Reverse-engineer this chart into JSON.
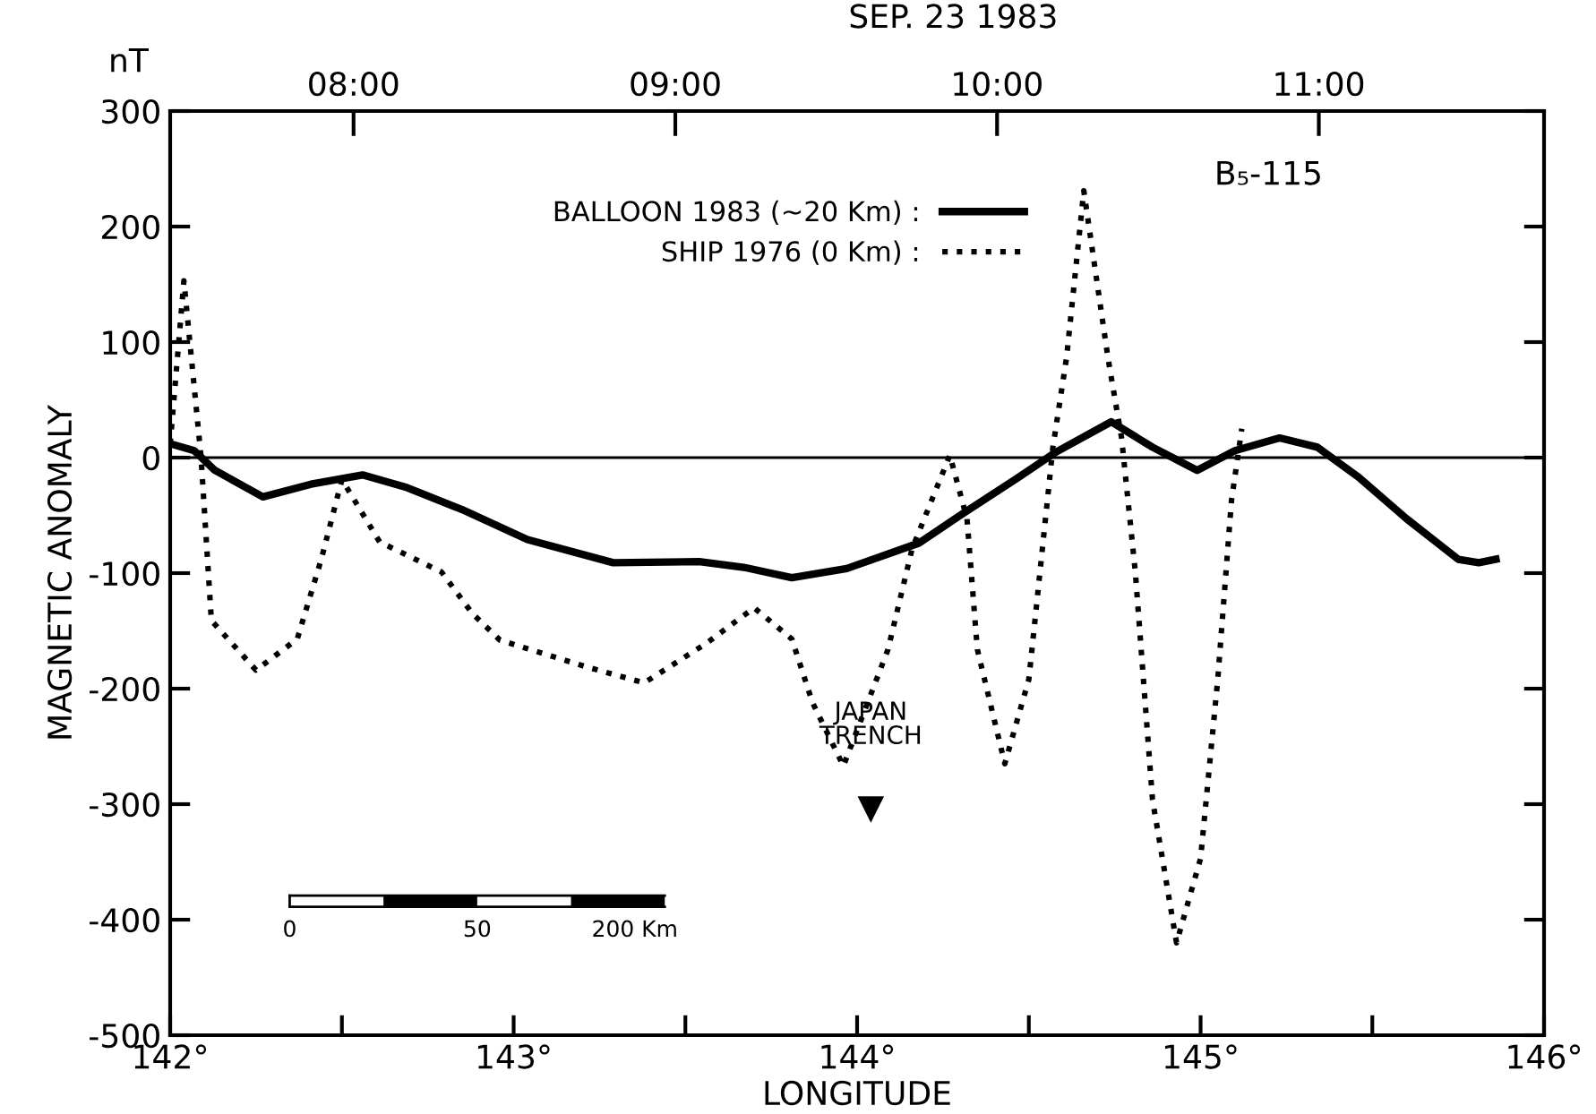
{
  "chart_data": {
    "type": "line",
    "x2label": "SEP. 23 1983",
    "xlabel": "LONGITUDE",
    "ylabel": "MAGNETIC ANOMALY",
    "xlim": [
      142,
      146
    ],
    "ylim": [
      -500,
      300
    ],
    "xticks": [
      {
        "value": 142,
        "label": "142°"
      },
      {
        "value": 142.5,
        "label": null
      },
      {
        "value": 143,
        "label": "143°"
      },
      {
        "value": 143.5,
        "label": null
      },
      {
        "value": 144,
        "label": "144°"
      },
      {
        "value": 144.5,
        "label": null
      },
      {
        "value": 145,
        "label": "145°"
      },
      {
        "value": 145.5,
        "label": null
      },
      {
        "value": 146,
        "label": "146°"
      }
    ],
    "yticks": [
      -500,
      -400,
      -300,
      -200,
      -100,
      0,
      100,
      200,
      300
    ],
    "x2lim": [
      7.43,
      11.7
    ],
    "x2ticks": [
      {
        "value": 8,
        "label": "08:00"
      },
      {
        "value": 9,
        "label": "09:00"
      },
      {
        "value": 10,
        "label": "10:00"
      },
      {
        "value": 11,
        "label": "11:00"
      }
    ],
    "legend": "top",
    "grid": false,
    "ref_lines": [
      {
        "axis": "y",
        "value": 0,
        "label": null
      }
    ],
    "series": [
      {
        "name": "BALLOON 1983 (~20 Km) :",
        "color": "#000000",
        "line_style": "solid",
        "x": [
          142.0,
          142.07,
          142.13,
          142.27,
          142.41,
          142.56,
          142.69,
          142.85,
          143.04,
          143.29,
          143.54,
          143.67,
          143.81,
          143.97,
          144.18,
          144.3,
          144.47,
          144.58,
          144.74,
          144.86,
          144.99,
          145.1,
          145.23,
          145.34,
          145.46,
          145.6,
          145.75,
          145.81,
          145.86
        ],
        "values": [
          12,
          6,
          -11,
          -34,
          -23,
          -15,
          -26,
          -45,
          -71,
          -91,
          -90,
          -95,
          -104,
          -96,
          -74,
          -50,
          -17,
          5,
          31,
          9,
          -11,
          6,
          17,
          9,
          -17,
          -53,
          -88,
          -91,
          -88
        ]
      },
      {
        "name": "SHIP 1976 (0 Km) :",
        "color": "#000000",
        "line_style": "dotted",
        "x": [
          142.0,
          142.04,
          142.09,
          142.12,
          142.25,
          142.37,
          142.44,
          142.5,
          142.61,
          142.79,
          142.88,
          142.96,
          143.21,
          143.38,
          143.56,
          143.7,
          143.81,
          143.87,
          143.96,
          144.09,
          144.16,
          144.27,
          144.32,
          144.35,
          144.43,
          144.5,
          144.57,
          144.61,
          144.66,
          144.73,
          144.77,
          144.81,
          144.86,
          144.93,
          145.0,
          145.05,
          145.09,
          145.12
        ],
        "values": [
          12,
          153,
          0,
          -141,
          -184,
          -157,
          -88,
          -19,
          -73,
          -99,
          -135,
          -158,
          -181,
          -195,
          -161,
          -130,
          -157,
          -212,
          -267,
          -166,
          -79,
          2,
          -53,
          -166,
          -265,
          -192,
          9,
          87,
          231,
          87,
          17,
          -99,
          -296,
          -420,
          -347,
          -192,
          -37,
          25
        ]
      }
    ],
    "annotations": [
      "nT",
      "B₅-115",
      {
        "text": "JAPAN\nTRENCH",
        "x": 144.04,
        "y": -304
      },
      "0",
      "50",
      "200 Km"
    ]
  }
}
